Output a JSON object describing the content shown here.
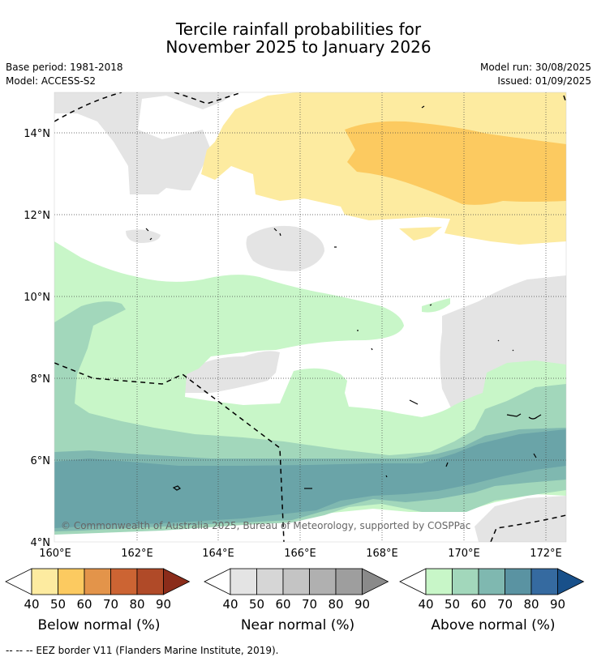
{
  "header": {
    "title_line1": "Tercile rainfall probabilities for",
    "title_line2": "November 2025 to January 2026",
    "base_period": "Base period: 1981-2018",
    "model": "Model: ACCESS-S2",
    "model_run": "Model run: 30/08/2025",
    "issued": "Issued: 01/09/2025"
  },
  "map": {
    "lat_labels": [
      "4°N",
      "6°N",
      "8°N",
      "10°N",
      "12°N",
      "14°N"
    ],
    "lon_labels": [
      "160°E",
      "162°E",
      "164°E",
      "166°E",
      "168°E",
      "170°E",
      "172°E"
    ],
    "copyright": "© Commonwealth of Australia 2025, Bureau of Meteorology, supported by COSPPac",
    "colors": {
      "below": [
        "#fdeba0",
        "#fcca60",
        "#e3944a",
        "#cc6433",
        "#b04a28",
        "#8b2c1a"
      ],
      "near": [
        "#e4e4e4",
        "#d6d6d6",
        "#c4c4c4",
        "#b0b0b0",
        "#9e9e9e",
        "#8a8a8a"
      ],
      "above": [
        "#c8f6c8",
        "#a2d7bb",
        "#7fb8b0",
        "#5a93a2",
        "#356aa0",
        "#18508a"
      ],
      "land_white": "#ffffff"
    }
  },
  "colorbars": {
    "ticks": [
      "40",
      "50",
      "60",
      "70",
      "80",
      "90"
    ],
    "below_label": "Below normal (%)",
    "near_label": "Near normal (%)",
    "above_label": "Above normal (%)"
  },
  "footer": {
    "eez": "--  --  -- EEZ border V11 (Flanders Marine Institute, 2019)."
  }
}
